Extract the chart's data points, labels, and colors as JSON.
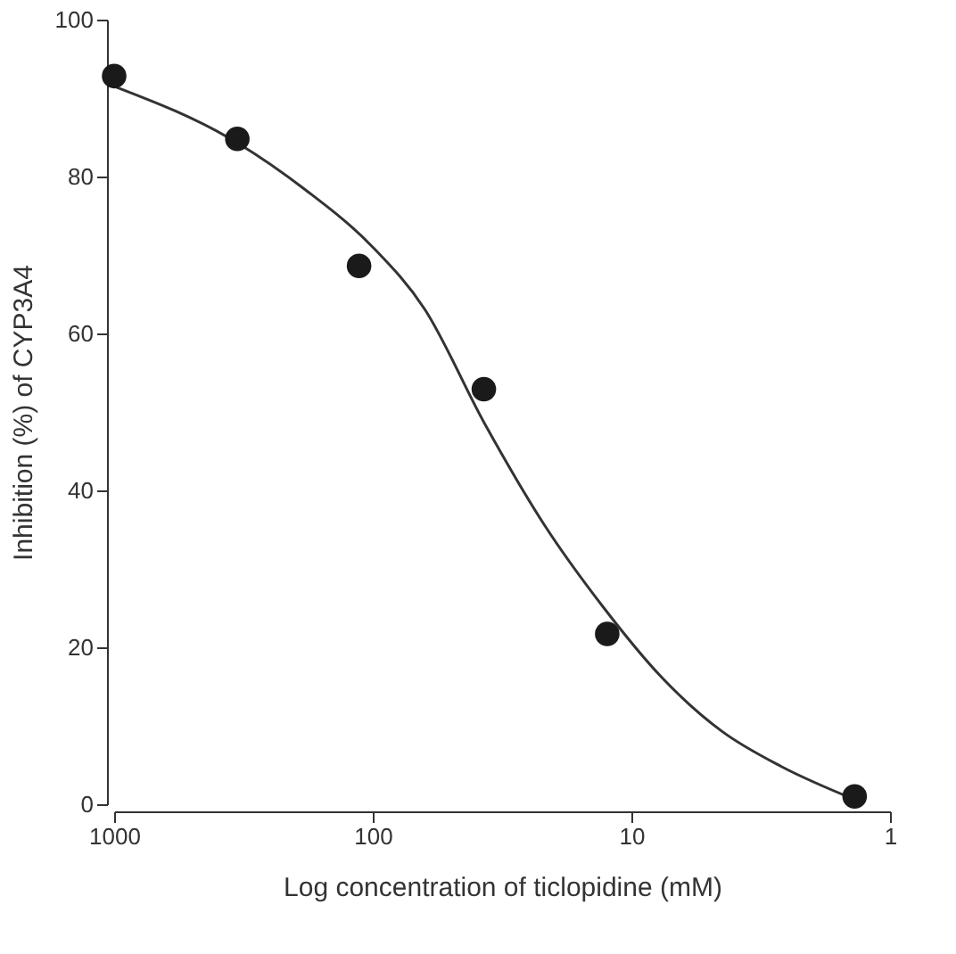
{
  "chart_data": {
    "type": "scatter",
    "xlabel": "Log concentration of ticlopidine (mM)",
    "ylabel": "Inhibition (%) of CYP3A4",
    "log": "x",
    "xlim": [
      1000,
      1
    ],
    "xticks": [
      1000,
      100,
      10,
      1
    ],
    "ylim": [
      0,
      100
    ],
    "yticks": [
      0,
      20,
      40,
      60,
      80,
      100
    ],
    "grid": false,
    "marker": "circle",
    "series": [
      {
        "color": "#1a1a1a",
        "x": [
          1000,
          334,
          113,
          37.2,
          12.4,
          1.37
        ],
        "values": [
          92.8,
          84.8,
          68.6,
          52.9,
          21.7,
          1.0
        ]
      },
      {
        "type": "line",
        "color": "#333333",
        "line_style": "solid",
        "marker": "none",
        "x": [
          1000,
          334,
          182,
          100,
          63,
          37.2,
          21.9,
          12.9,
          7.6,
          4.47,
          2.63,
          1.37
        ],
        "values": [
          91.5,
          84.3,
          78.3,
          71,
          63.1,
          48.7,
          35.8,
          25.2,
          16.1,
          9.3,
          4.8,
          0.6
        ]
      }
    ]
  }
}
